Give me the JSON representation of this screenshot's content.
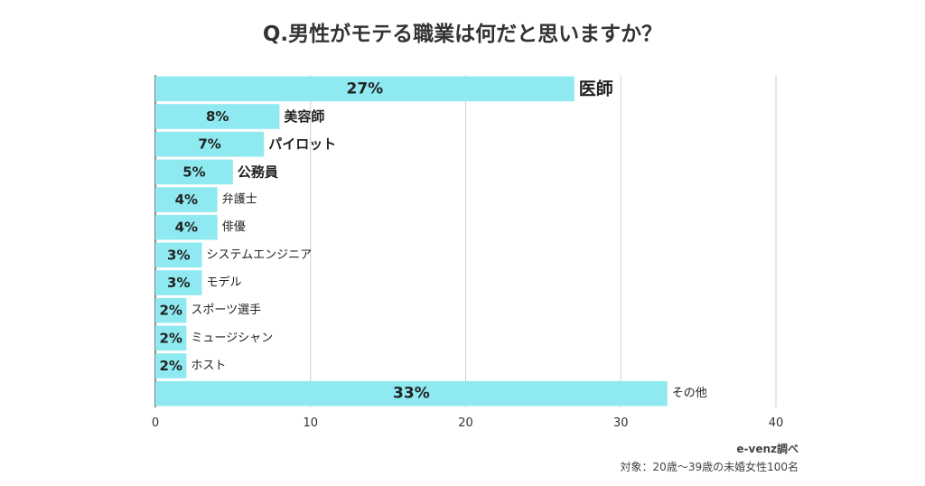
{
  "title": "Q.男性がモテる職業は何だと思いますか？",
  "source": "e-venz調べ",
  "note": "対象：20歳～39歳の未婚女性100名",
  "colors": {
    "bar": "#8eeaf0",
    "grid": "#d0d0d0",
    "axis": "#333333"
  },
  "chart_data": {
    "type": "bar",
    "orientation": "horizontal",
    "categories": [
      "医師",
      "美容師",
      "パイロット",
      "公務員",
      "弁護士",
      "俳優",
      "システムエンジニア",
      "モデル",
      "スポーツ選手",
      "ミュージシャン",
      "ホスト",
      "その他"
    ],
    "values": [
      27,
      8,
      7,
      5,
      4,
      4,
      3,
      3,
      2,
      2,
      2,
      33
    ],
    "data_labels": [
      "27%",
      "8%",
      "7%",
      "5%",
      "4%",
      "4%",
      "3%",
      "3%",
      "2%",
      "2%",
      "2%",
      "33%"
    ],
    "xlim": [
      0,
      40
    ],
    "xticks": [
      "0",
      "10",
      "20",
      "30",
      "40"
    ],
    "grid": true
  }
}
